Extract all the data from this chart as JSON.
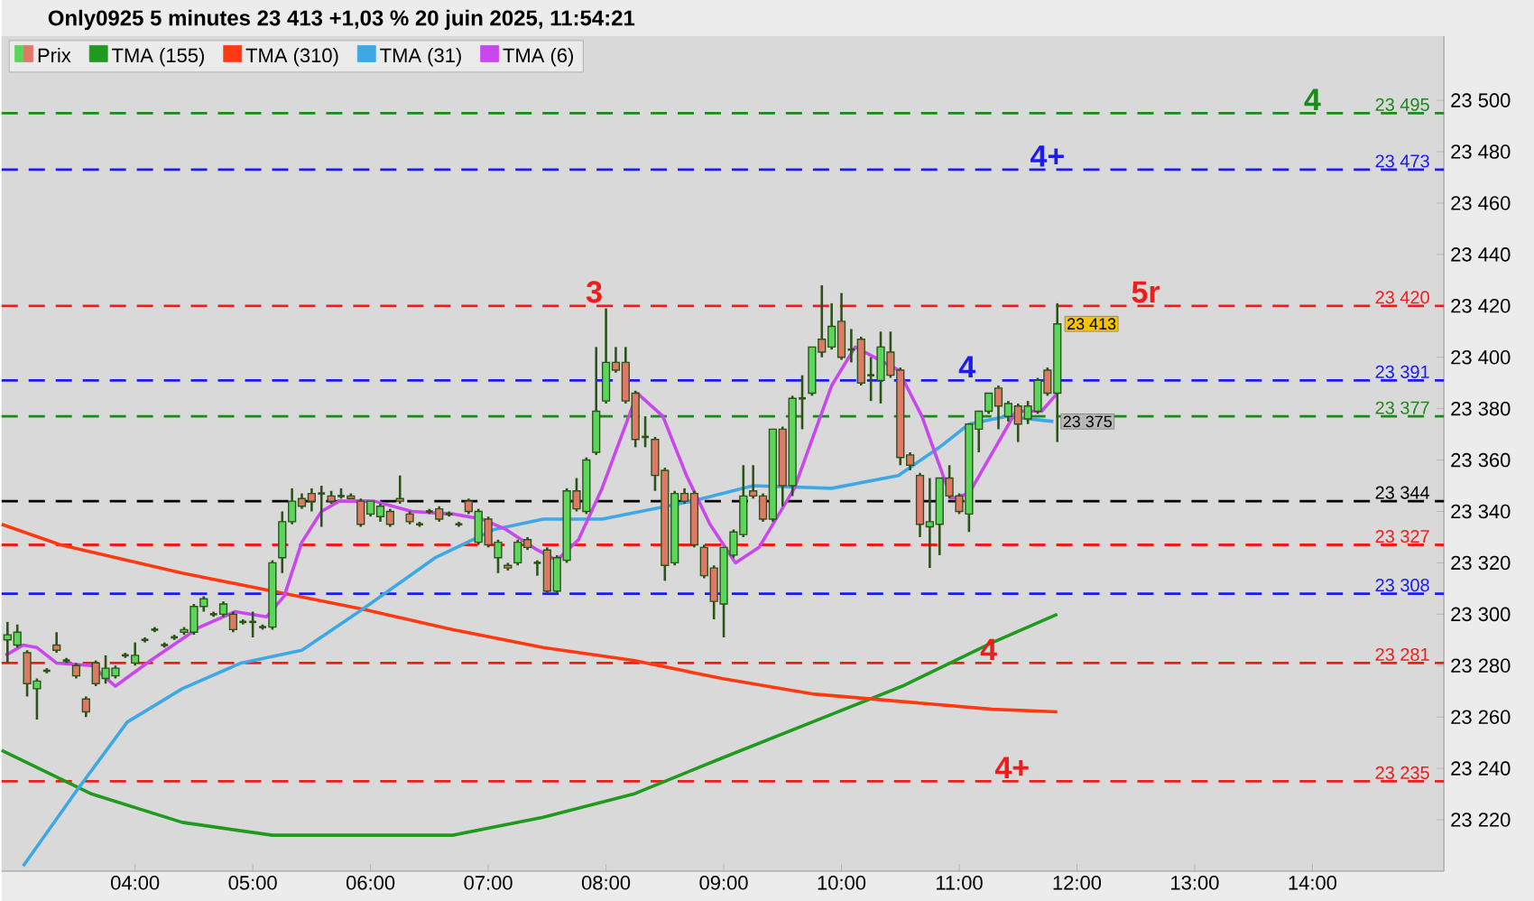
{
  "chart_data": {
    "type": "candlestick",
    "title": "Only0925 5 minutes 23 413 +1,03 % 20 juin 2025, 11:54:21",
    "legend": "top left",
    "xlim": [
      "2025-06-20T02:52",
      "2025-06-20T15:07"
    ],
    "ylim": [
      23200,
      23525
    ],
    "xticks": [
      {
        "value": "2025-06-20T04:00",
        "label": "04:00"
      },
      {
        "value": "2025-06-20T05:00",
        "label": "05:00"
      },
      {
        "value": "2025-06-20T06:00",
        "label": "06:00"
      },
      {
        "value": "2025-06-20T07:00",
        "label": "07:00"
      },
      {
        "value": "2025-06-20T08:00",
        "label": "08:00"
      },
      {
        "value": "2025-06-20T09:00",
        "label": "09:00"
      },
      {
        "value": "2025-06-20T10:00",
        "label": "10:00"
      },
      {
        "value": "2025-06-20T11:00",
        "label": "11:00"
      },
      {
        "value": "2025-06-20T12:00",
        "label": "12:00"
      },
      {
        "value": "2025-06-20T13:00",
        "label": "13:00"
      },
      {
        "value": "2025-06-20T14:00",
        "label": "14:00"
      }
    ],
    "yticks": [
      {
        "value": 23220,
        "label": "23 220"
      },
      {
        "value": 23240,
        "label": "23 240"
      },
      {
        "value": 23260,
        "label": "23 260"
      },
      {
        "value": 23280,
        "label": "23 280"
      },
      {
        "value": 23300,
        "label": "23 300"
      },
      {
        "value": 23320,
        "label": "23 320"
      },
      {
        "value": 23340,
        "label": "23 340"
      },
      {
        "value": 23360,
        "label": "23 360"
      },
      {
        "value": 23380,
        "label": "23 380"
      },
      {
        "value": 23400,
        "label": "23 400"
      },
      {
        "value": 23420,
        "label": "23 420"
      },
      {
        "value": 23440,
        "label": "23 440"
      },
      {
        "value": 23460,
        "label": "23 460"
      },
      {
        "value": 23480,
        "label": "23 480"
      },
      {
        "value": 23500,
        "label": "23 500"
      }
    ],
    "series": [
      {
        "name": "Prix",
        "colors": [
          "#5ad65a",
          "#5ad65a",
          "#e07868",
          "#5ad65a",
          "#2c5418",
          "#e07868",
          "#2c5418",
          "#e07868",
          "#e07868",
          "#e07868",
          "#5ad65a",
          "#5ad65a",
          "#2c5418",
          "#5ad65a",
          "#2c5418",
          "#2c5418",
          "#2c5418",
          "#2c5418",
          "#5ad65a",
          "#5ad65a",
          "#5ad65a",
          "#2c5418",
          "#5ad65a",
          "#e07868",
          "#2c5418",
          "#2c5418",
          "#2c5418",
          "#5ad65a",
          "#5ad65a",
          "#5ad65a",
          "#e07868",
          "#e07868",
          "#2c5418",
          "#e07868",
          "#2c5418",
          "#e07868",
          "#e07868",
          "#5ad65a",
          "#5ad65a",
          "#e07868",
          "#e07868",
          "#e07868",
          "#2c5418",
          "#2c5418",
          "#e07868",
          "#2c5418",
          "#2c5418",
          "#e07868",
          "#5ad65a",
          "#e07868",
          "#5ad65a",
          "#e07868",
          "#5ad65a",
          "#e07868",
          "#2c5418",
          "#e07868",
          "#5ad65a",
          "#5ad65a",
          "#e07868",
          "#5ad65a",
          "#5ad65a",
          "#5ad65a",
          "#e07868",
          "#e07868",
          "#e07868",
          "#2c5418",
          "#e07868",
          "#e07868",
          "#5ad65a",
          "#e07868",
          "#e07868",
          "#e07868",
          "#e07868",
          "#5ad65a",
          "#5ad65a",
          "#5ad65a",
          "#e07868",
          "#e07868",
          "#5ad65a",
          "#e07868",
          "#5ad65a",
          "#2c5418",
          "#5ad65a",
          "#e07868",
          "#5ad65a",
          "#e07868",
          "#2c5418",
          "#e07868",
          "#2c5418",
          "#5ad65a",
          "#e07868",
          "#e07868",
          "#e07868",
          "#e07868",
          "#5ad65a",
          "#5ad65a",
          "#e07868",
          "#e07868",
          "#5ad65a",
          "#5ad65a",
          "#5ad65a",
          "#e07868",
          "#5ad65a",
          "#e07868",
          "#5ad65a",
          "#5ad65a",
          "#e07868",
          "#5ad65a"
        ],
        "x": [
          "2025-06-20T02:55",
          "2025-06-20T03:00",
          "2025-06-20T03:05",
          "2025-06-20T03:10",
          "2025-06-20T03:15",
          "2025-06-20T03:20",
          "2025-06-20T03:25",
          "2025-06-20T03:30",
          "2025-06-20T03:35",
          "2025-06-20T03:40",
          "2025-06-20T03:45",
          "2025-06-20T03:50",
          "2025-06-20T03:55",
          "2025-06-20T04:00",
          "2025-06-20T04:05",
          "2025-06-20T04:10",
          "2025-06-20T04:15",
          "2025-06-20T04:20",
          "2025-06-20T04:25",
          "2025-06-20T04:30",
          "2025-06-20T04:35",
          "2025-06-20T04:40",
          "2025-06-20T04:45",
          "2025-06-20T04:50",
          "2025-06-20T04:55",
          "2025-06-20T05:00",
          "2025-06-20T05:05",
          "2025-06-20T05:10",
          "2025-06-20T05:15",
          "2025-06-20T05:20",
          "2025-06-20T05:25",
          "2025-06-20T05:30",
          "2025-06-20T05:35",
          "2025-06-20T05:40",
          "2025-06-20T05:45",
          "2025-06-20T05:50",
          "2025-06-20T05:55",
          "2025-06-20T06:00",
          "2025-06-20T06:05",
          "2025-06-20T06:10",
          "2025-06-20T06:15",
          "2025-06-20T06:20",
          "2025-06-20T06:25",
          "2025-06-20T06:30",
          "2025-06-20T06:35",
          "2025-06-20T06:40",
          "2025-06-20T06:45",
          "2025-06-20T06:50",
          "2025-06-20T06:55",
          "2025-06-20T07:00",
          "2025-06-20T07:05",
          "2025-06-20T07:10",
          "2025-06-20T07:15",
          "2025-06-20T07:20",
          "2025-06-20T07:25",
          "2025-06-20T07:30",
          "2025-06-20T07:35",
          "2025-06-20T07:40",
          "2025-06-20T07:45",
          "2025-06-20T07:50",
          "2025-06-20T07:55",
          "2025-06-20T08:00",
          "2025-06-20T08:05",
          "2025-06-20T08:10",
          "2025-06-20T08:15",
          "2025-06-20T08:20",
          "2025-06-20T08:25",
          "2025-06-20T08:30",
          "2025-06-20T08:35",
          "2025-06-20T08:40",
          "2025-06-20T08:45",
          "2025-06-20T08:50",
          "2025-06-20T08:55",
          "2025-06-20T09:00",
          "2025-06-20T09:05",
          "2025-06-20T09:10",
          "2025-06-20T09:15",
          "2025-06-20T09:20",
          "2025-06-20T09:25",
          "2025-06-20T09:30",
          "2025-06-20T09:35",
          "2025-06-20T09:40",
          "2025-06-20T09:45",
          "2025-06-20T09:50",
          "2025-06-20T09:55",
          "2025-06-20T10:00",
          "2025-06-20T10:05",
          "2025-06-20T10:10",
          "2025-06-20T10:15",
          "2025-06-20T10:20",
          "2025-06-20T10:25",
          "2025-06-20T10:30",
          "2025-06-20T10:35",
          "2025-06-20T10:40",
          "2025-06-20T10:45",
          "2025-06-20T10:50",
          "2025-06-20T10:55",
          "2025-06-20T11:00",
          "2025-06-20T11:05",
          "2025-06-20T11:10",
          "2025-06-20T11:15",
          "2025-06-20T11:20",
          "2025-06-20T11:25",
          "2025-06-20T11:30",
          "2025-06-20T11:35",
          "2025-06-20T11:40",
          "2025-06-20T11:45",
          "2025-06-20T11:50"
        ],
        "ohlc": [
          [
            23290,
            23297,
            23281,
            23292
          ],
          [
            23288,
            23296,
            23287,
            23293
          ],
          [
            23285,
            23286,
            23268,
            23273
          ],
          [
            23271,
            23275,
            23259,
            23274
          ],
          [
            23278,
            23279,
            23277,
            23278
          ],
          [
            23288,
            23293,
            23285,
            23286
          ],
          [
            23282,
            23283,
            23281,
            23282
          ],
          [
            23280,
            23281,
            23275,
            23276
          ],
          [
            23267,
            23268,
            23260,
            23262
          ],
          [
            23281,
            23282,
            23272,
            23273
          ],
          [
            23275,
            23284,
            23273,
            23279
          ],
          [
            23276,
            23280,
            23275,
            23279
          ],
          [
            23284,
            23285,
            23283,
            23284
          ],
          [
            23281,
            23289,
            23280,
            23284
          ],
          [
            23290,
            23291,
            23289,
            23290
          ],
          [
            23294,
            23295,
            23293,
            23294
          ],
          [
            23288,
            23289,
            23287,
            23288
          ],
          [
            23291,
            23292,
            23290,
            23291
          ],
          [
            23293,
            23295,
            23292,
            23294
          ],
          [
            23293,
            23304,
            23292,
            23303
          ],
          [
            23303,
            23307,
            23301,
            23306
          ],
          [
            23300,
            23301,
            23299,
            23300
          ],
          [
            23300,
            23305,
            23299,
            23304
          ],
          [
            23300,
            23301,
            23293,
            23294
          ],
          [
            23297,
            23298,
            23296,
            23297
          ],
          [
            23297,
            23301,
            23291,
            23297
          ],
          [
            23295,
            23296,
            23294,
            23295
          ],
          [
            23295,
            23321,
            23294,
            23320
          ],
          [
            23322,
            23340,
            23316,
            23336
          ],
          [
            23336,
            23349,
            23335,
            23344
          ],
          [
            23345,
            23347,
            23341,
            23342
          ],
          [
            23347,
            23349,
            23340,
            23344
          ],
          [
            23347,
            23350,
            23334,
            23347
          ],
          [
            23346,
            23348,
            23343,
            23344
          ],
          [
            23346,
            23349,
            23345,
            23346
          ],
          [
            23346,
            23347,
            23345,
            23345
          ],
          [
            23344,
            23345,
            23334,
            23335
          ],
          [
            23339,
            23344,
            23338,
            23344
          ],
          [
            23338,
            23343,
            23336,
            23342
          ],
          [
            23340,
            23341,
            23334,
            23335
          ],
          [
            23345,
            23354,
            23343,
            23344
          ],
          [
            23339,
            23340,
            23335,
            23336
          ],
          [
            23335,
            23336,
            23334,
            23335
          ],
          [
            23340,
            23341,
            23339,
            23340
          ],
          [
            23341,
            23342,
            23336,
            23337
          ],
          [
            23339,
            23340,
            23338,
            23339
          ],
          [
            23335,
            23336,
            23334,
            23335
          ],
          [
            23344,
            23345,
            23339,
            23340
          ],
          [
            23328,
            23341,
            23327,
            23340
          ],
          [
            23337,
            23338,
            23326,
            23327
          ],
          [
            23322,
            23329,
            23316,
            23328
          ],
          [
            23319,
            23320,
            23317,
            23318
          ],
          [
            23320,
            23329,
            23319,
            23328
          ],
          [
            23329,
            23330,
            23325,
            23326
          ],
          [
            23320,
            23321,
            23315,
            23320
          ],
          [
            23325,
            23326,
            23308,
            23309
          ],
          [
            23309,
            23323,
            23308,
            23322
          ],
          [
            23321,
            23349,
            23320,
            23348
          ],
          [
            23348,
            23353,
            23340,
            23341
          ],
          [
            23340,
            23361,
            23339,
            23360
          ],
          [
            23363,
            23404,
            23362,
            23379
          ],
          [
            23383,
            23419,
            23382,
            23398
          ],
          [
            23398,
            23404,
            23394,
            23395
          ],
          [
            23398,
            23404,
            23382,
            23383
          ],
          [
            23386,
            23387,
            23365,
            23368
          ],
          [
            23369,
            23377,
            23365,
            23369
          ],
          [
            23368,
            23369,
            23348,
            23354
          ],
          [
            23356,
            23357,
            23313,
            23319
          ],
          [
            23320,
            23348,
            23319,
            23347
          ],
          [
            23347,
            23349,
            23343,
            23344
          ],
          [
            23347,
            23348,
            23326,
            23327
          ],
          [
            23326,
            23327,
            23314,
            23315
          ],
          [
            23318,
            23319,
            23298,
            23305
          ],
          [
            23304,
            23326,
            23291,
            23326
          ],
          [
            23323,
            23333,
            23322,
            23332
          ],
          [
            23331,
            23358,
            23330,
            23346
          ],
          [
            23348,
            23358,
            23345,
            23346
          ],
          [
            23346,
            23347,
            23336,
            23337
          ],
          [
            23337,
            23372,
            23336,
            23372
          ],
          [
            23372,
            23373,
            23342,
            23350
          ],
          [
            23350,
            23385,
            23346,
            23384
          ],
          [
            23384,
            23393,
            23372,
            23384
          ],
          [
            23386,
            23404,
            23385,
            23404
          ],
          [
            23407,
            23428,
            23400,
            23402
          ],
          [
            23404,
            23421,
            23403,
            23412
          ],
          [
            23414,
            23425,
            23399,
            23400
          ],
          [
            23403,
            23411,
            23398,
            23403
          ],
          [
            23407,
            23408,
            23389,
            23390
          ],
          [
            23393,
            23400,
            23383,
            23393
          ],
          [
            23391,
            23410,
            23382,
            23404
          ],
          [
            23402,
            23410,
            23392,
            23393
          ],
          [
            23395,
            23396,
            23358,
            23361
          ],
          [
            23362,
            23363,
            23356,
            23358
          ],
          [
            23354,
            23355,
            23330,
            23335
          ],
          [
            23334,
            23353,
            23318,
            23336
          ],
          [
            23335,
            23353,
            23323,
            23353
          ],
          [
            23353,
            23358,
            23345,
            23346
          ],
          [
            23346,
            23347,
            23339,
            23340
          ],
          [
            23339,
            23374,
            23332,
            23374
          ],
          [
            23372,
            23379,
            23363,
            23379
          ],
          [
            23379,
            23386,
            23378,
            23386
          ],
          [
            23388,
            23389,
            23372,
            23381
          ],
          [
            23377,
            23383,
            23375,
            23382
          ],
          [
            23381,
            23382,
            23367,
            23374
          ],
          [
            23376,
            23383,
            23374,
            23381
          ],
          [
            23379,
            23392,
            23378,
            23391
          ],
          [
            23395,
            23396,
            23385,
            23386
          ],
          [
            23386,
            23421,
            23367,
            23413
          ]
        ]
      },
      {
        "name": "TMA (155)",
        "type": "line",
        "color": "#1f9a1f",
        "x": [
          "2025-06-20T02:52",
          "2025-06-20T03:38",
          "2025-06-20T04:24",
          "2025-06-20T05:10",
          "2025-06-20T05:56",
          "2025-06-20T06:42",
          "2025-06-20T07:28",
          "2025-06-20T08:14",
          "2025-06-20T08:59",
          "2025-06-20T09:45",
          "2025-06-20T10:31",
          "2025-06-20T11:17",
          "2025-06-20T11:50"
        ],
        "values": [
          23247,
          23230,
          23219,
          23214,
          23214,
          23214,
          23221,
          23230,
          23244,
          23258,
          23272,
          23289,
          23300
        ]
      },
      {
        "name": "TMA (310)",
        "type": "line",
        "color": "#ff3a12",
        "x": [
          "2025-06-20T02:52",
          "2025-06-20T03:22",
          "2025-06-20T04:24",
          "2025-06-20T05:10",
          "2025-06-20T05:56",
          "2025-06-20T06:42",
          "2025-06-20T07:28",
          "2025-06-20T08:14",
          "2025-06-20T08:59",
          "2025-06-20T09:45",
          "2025-06-20T10:31",
          "2025-06-20T11:17",
          "2025-06-20T11:50"
        ],
        "values": [
          23335,
          23327,
          23316,
          23309,
          23302,
          23294,
          23287,
          23282,
          23275,
          23269,
          23266,
          23263,
          23262
        ]
      },
      {
        "name": "TMA (31)",
        "type": "line",
        "color": "#3ea8e6",
        "x": [
          "2025-06-20T03:03",
          "2025-06-20T03:29",
          "2025-06-20T03:56",
          "2025-06-20T04:24",
          "2025-06-20T04:54",
          "2025-06-20T05:25",
          "2025-06-20T05:56",
          "2025-06-20T06:33",
          "2025-06-20T07:03",
          "2025-06-20T07:28",
          "2025-06-20T07:58",
          "2025-06-20T08:44",
          "2025-06-20T09:15",
          "2025-06-20T09:55",
          "2025-06-20T10:29",
          "2025-06-20T10:50",
          "2025-06-20T11:05",
          "2025-06-20T11:24",
          "2025-06-20T11:48"
        ],
        "values": [
          23202,
          23230,
          23258,
          23271,
          23281,
          23286,
          23302,
          23322,
          23333,
          23337,
          23337,
          23344,
          23350,
          23349,
          23354,
          23365,
          23374,
          23377,
          23375
        ]
      },
      {
        "name": "TMA (6)",
        "type": "line",
        "color": "#c848ee",
        "x": [
          "2025-06-20T02:54",
          "2025-06-20T03:03",
          "2025-06-20T03:10",
          "2025-06-20T03:20",
          "2025-06-20T03:38",
          "2025-06-20T03:50",
          "2025-06-20T04:08",
          "2025-06-20T04:33",
          "2025-06-20T04:51",
          "2025-06-20T05:07",
          "2025-06-20T05:16",
          "2025-06-20T05:25",
          "2025-06-20T05:35",
          "2025-06-20T05:44",
          "2025-06-20T06:02",
          "2025-06-20T06:21",
          "2025-06-20T06:42",
          "2025-06-20T06:57",
          "2025-06-20T07:09",
          "2025-06-20T07:25",
          "2025-06-20T07:35",
          "2025-06-20T07:46",
          "2025-06-20T07:58",
          "2025-06-20T08:16",
          "2025-06-20T08:29",
          "2025-06-20T08:41",
          "2025-06-20T08:53",
          "2025-06-20T09:06",
          "2025-06-20T09:18",
          "2025-06-20T09:36",
          "2025-06-20T09:55",
          "2025-06-20T10:07",
          "2025-06-20T10:29",
          "2025-06-20T10:41",
          "2025-06-20T10:56",
          "2025-06-20T11:05",
          "2025-06-20T11:17",
          "2025-06-20T11:29",
          "2025-06-20T11:42",
          "2025-06-20T11:50"
        ],
        "values": [
          23284,
          23288,
          23287,
          23281,
          23280,
          23272,
          23282,
          23295,
          23301,
          23299,
          23307,
          23328,
          23340,
          23344,
          23344,
          23340,
          23339,
          23337,
          23333,
          23325,
          23321,
          23329,
          23349,
          23386,
          23377,
          23354,
          23335,
          23320,
          23326,
          23349,
          23389,
          23404,
          23395,
          23377,
          23345,
          23347,
          23363,
          23379,
          23379,
          23386
        ]
      }
    ],
    "ref_lines": [
      {
        "axis": "y",
        "value": 23495,
        "label": "23 495",
        "color": "#1a8a1a",
        "line_style": "dashed"
      },
      {
        "axis": "y",
        "value": 23473,
        "label": "23 473",
        "color": "#1c1cf0",
        "line_style": "dashed"
      },
      {
        "axis": "y",
        "value": 23420,
        "label": "23 420",
        "color": "#f01c1c",
        "line_style": "dashed"
      },
      {
        "axis": "y",
        "value": 23391,
        "label": "23 391",
        "color": "#1c1cf0",
        "line_style": "dashed"
      },
      {
        "axis": "y",
        "value": 23377,
        "label": "23 377",
        "color": "#1a8a1a",
        "line_style": "dashed"
      },
      {
        "axis": "y",
        "value": 23344,
        "label": "23 344",
        "color": "#000000",
        "line_style": "dashed"
      },
      {
        "axis": "y",
        "value": 23327,
        "label": "23 327",
        "color": "#f01c1c",
        "line_style": "dashed"
      },
      {
        "axis": "y",
        "value": 23308,
        "label": "23 308",
        "color": "#1c1cf0",
        "line_style": "dashed"
      },
      {
        "axis": "y",
        "value": 23281,
        "label": "23 281",
        "color": "#f01c1c",
        "line_style": "dashed"
      },
      {
        "axis": "y",
        "value": 23235,
        "label": "23 235",
        "color": "#f01c1c",
        "line_style": "dashed"
      }
    ],
    "annotations": [
      {
        "text": "3",
        "x": "2025-06-20T07:54",
        "y": 23420
      },
      {
        "text": "4",
        "x": "2025-06-20T14:00",
        "y": 23495
      },
      {
        "text": "4+",
        "x": "2025-06-20T11:45",
        "y": 23473
      },
      {
        "text": "5r",
        "x": "2025-06-20T12:35",
        "y": 23420
      },
      {
        "text": "4",
        "x": "2025-06-20T11:04",
        "y": 23391
      },
      {
        "text": "4",
        "x": "2025-06-20T11:15",
        "y": 23281
      },
      {
        "text": "4+",
        "x": "2025-06-20T11:27",
        "y": 23235
      },
      {
        "text": "23 413",
        "x": "2025-06-20T11:50",
        "y": 23413
      },
      {
        "text": "23 375",
        "x": "2025-06-20T11:48",
        "y": 23375
      }
    ]
  }
}
